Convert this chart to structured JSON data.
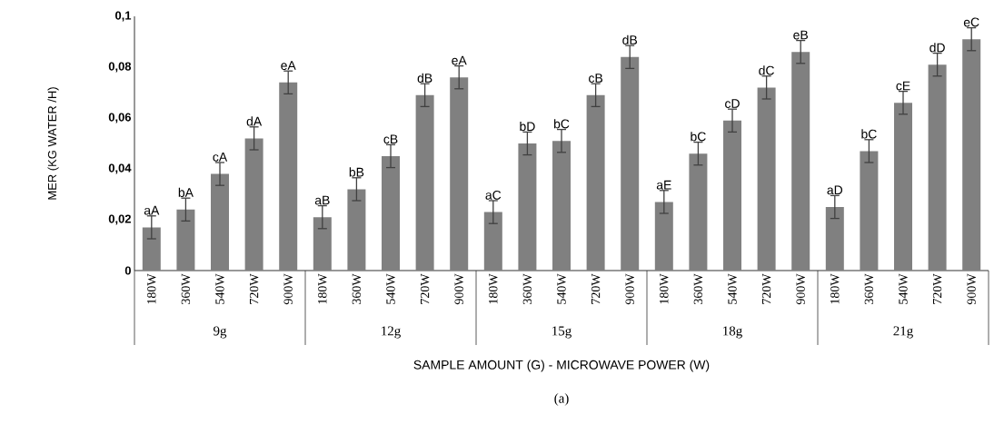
{
  "chart_data": {
    "type": "bar",
    "xlabel": "SAMPLE AMOUNT (G) - MICROWAVE POWER (W)",
    "ylabel": "MER (KG WATER /H)",
    "categories": [
      "180W",
      "360W",
      "540W",
      "720W",
      "900W",
      "180W",
      "360W",
      "540W",
      "720W",
      "900W",
      "180W",
      "360W",
      "540W",
      "720W",
      "900W",
      "180W",
      "360W",
      "540W",
      "720W",
      "900W",
      "180W",
      "360W",
      "540W",
      "720W",
      "900W"
    ],
    "values": [
      0.017,
      0.024,
      0.038,
      0.052,
      0.074,
      0.021,
      0.032,
      0.045,
      0.069,
      0.076,
      0.023,
      0.05,
      0.051,
      0.069,
      0.084,
      0.027,
      0.046,
      0.059,
      0.072,
      0.086,
      0.025,
      0.047,
      0.066,
      0.081,
      0.091
    ],
    "errors": [
      0.0045,
      0.0045,
      0.0045,
      0.0045,
      0.0045,
      0.0045,
      0.0045,
      0.0045,
      0.0045,
      0.0045,
      0.0045,
      0.0045,
      0.0045,
      0.0045,
      0.0045,
      0.0045,
      0.0045,
      0.0045,
      0.0045,
      0.0045,
      0.0045,
      0.0045,
      0.0045,
      0.0045,
      0.0045
    ],
    "value_labels": [
      "aA",
      "bA",
      "cA",
      "dA",
      "eA",
      "aB",
      "bB",
      "cB",
      "dB",
      "eA",
      "aC",
      "bD",
      "bC",
      "cB",
      "dB",
      "aE",
      "bC",
      "cD",
      "dC",
      "eB",
      "aD",
      "bC",
      "cE",
      "dD",
      "eC"
    ],
    "color": "#808080",
    "ylim": [
      0,
      0.1
    ],
    "yticks": [
      0,
      {
        "value": 0.02,
        "label": "0,02"
      },
      {
        "value": 0.04,
        "label": "0,04"
      },
      {
        "value": 0.06,
        "label": "0,06"
      },
      {
        "value": 0.08,
        "label": "0,08"
      },
      {
        "value": 0.1,
        "label": "0,1"
      }
    ],
    "grid": false,
    "annotations": [
      "9g",
      "12g",
      "15g",
      "18g",
      "21g",
      "(a)"
    ]
  }
}
